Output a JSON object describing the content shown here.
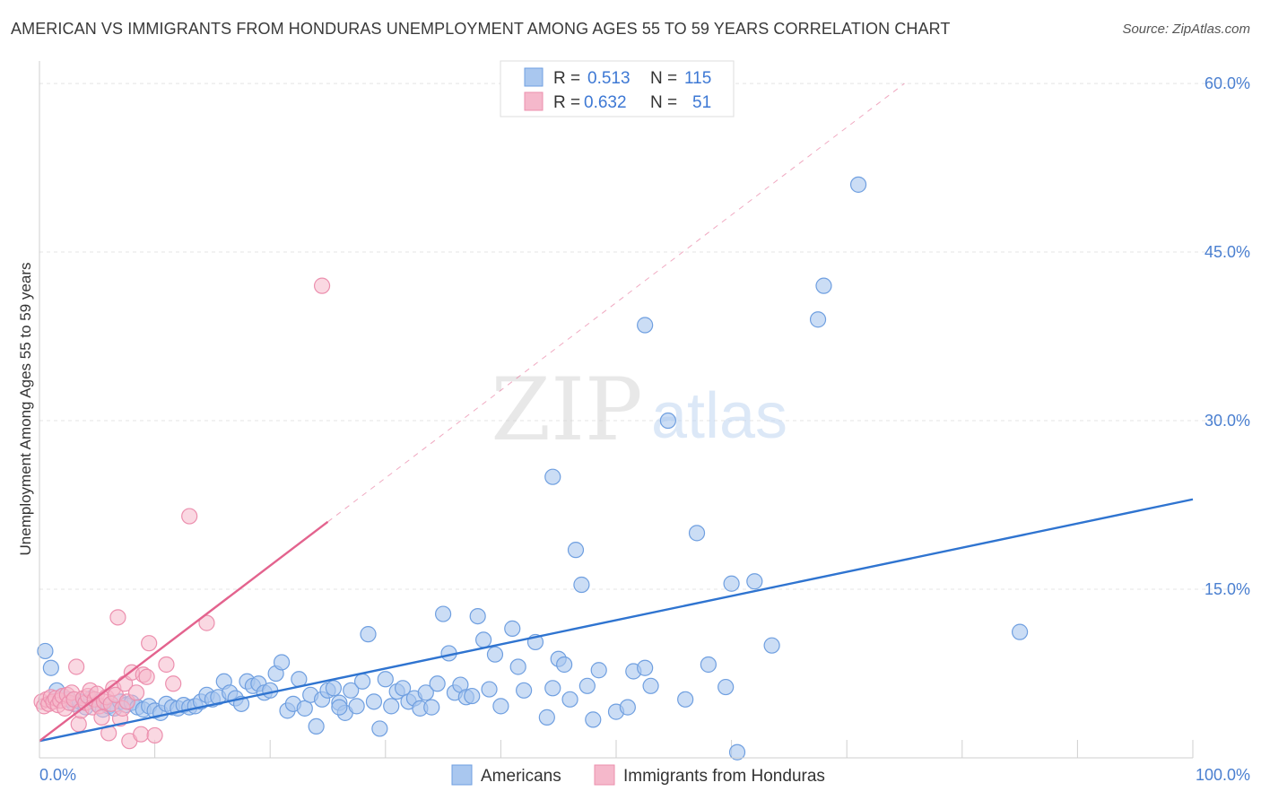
{
  "title": "AMERICAN VS IMMIGRANTS FROM HONDURAS UNEMPLOYMENT AMONG AGES 55 TO 59 YEARS CORRELATION CHART",
  "source": "Source: ZipAtlas.com",
  "watermark": {
    "zip": "ZIP",
    "atlas": "atlas"
  },
  "legend_top": [
    {
      "r_label": "R =",
      "r_value": "0.513",
      "n_label": "N =",
      "n_value": "115"
    },
    {
      "r_label": "R =",
      "r_value": "0.632",
      "n_label": "N =",
      "n_value": "51"
    }
  ],
  "colors": {
    "blue_fill": "#a9c7ef",
    "blue_stroke": "#6f9fe0",
    "blue_line": "#2f74d0",
    "pink_fill": "#f5b8cb",
    "pink_stroke": "#ec8fae",
    "pink_line": "#e3638e",
    "tick": "#4a7fd0",
    "grid": "#e4e4e4"
  },
  "chart_data": {
    "type": "scatter",
    "title": "AMERICAN VS IMMIGRANTS FROM HONDURAS UNEMPLOYMENT AMONG AGES 55 TO 59 YEARS CORRELATION CHART",
    "ylabel": "Unemployment Among Ages 55 to 59 years",
    "xlabel": "",
    "xlim": [
      0,
      100
    ],
    "ylim": [
      0,
      62
    ],
    "x_tick_labels": [
      "0.0%",
      "100.0%"
    ],
    "y_ticks": [
      15,
      30,
      45,
      60
    ],
    "y_tick_labels": [
      "15.0%",
      "30.0%",
      "45.0%",
      "60.0%"
    ],
    "grid": true,
    "legend_position": "bottom-center",
    "series": [
      {
        "name": "Americans",
        "r": 0.513,
        "n": 115,
        "trend": {
          "x": [
            0,
            100
          ],
          "y": [
            1.5,
            23.0
          ],
          "dashed_extension": false
        },
        "points": [
          [
            0.5,
            9.5
          ],
          [
            1,
            8
          ],
          [
            1.5,
            6
          ],
          [
            2,
            5.5
          ],
          [
            2.5,
            5.2
          ],
          [
            3,
            4.8
          ],
          [
            3.5,
            5
          ],
          [
            4,
            4.5
          ],
          [
            4.5,
            5.3
          ],
          [
            5,
            4.8
          ],
          [
            5.5,
            4.3
          ],
          [
            6,
            4.6
          ],
          [
            6.5,
            4.4
          ],
          [
            7,
            5
          ],
          [
            7.5,
            4.7
          ],
          [
            8,
            4.9
          ],
          [
            8.5,
            4.5
          ],
          [
            9,
            4.3
          ],
          [
            9.5,
            4.6
          ],
          [
            10,
            4.2
          ],
          [
            10.5,
            4
          ],
          [
            11,
            4.8
          ],
          [
            11.5,
            4.5
          ],
          [
            12,
            4.4
          ],
          [
            12.5,
            4.7
          ],
          [
            13,
            4.5
          ],
          [
            13.5,
            4.6
          ],
          [
            14,
            5
          ],
          [
            14.5,
            5.6
          ],
          [
            15,
            5.2
          ],
          [
            15.5,
            5.4
          ],
          [
            16,
            6.8
          ],
          [
            16.5,
            5.8
          ],
          [
            17,
            5.3
          ],
          [
            17.5,
            4.8
          ],
          [
            18,
            6.8
          ],
          [
            18.5,
            6.4
          ],
          [
            19,
            6.6
          ],
          [
            19.5,
            5.8
          ],
          [
            20,
            6
          ],
          [
            20.5,
            7.5
          ],
          [
            21,
            8.5
          ],
          [
            21.5,
            4.2
          ],
          [
            22,
            4.8
          ],
          [
            22.5,
            7
          ],
          [
            23,
            4.4
          ],
          [
            23.5,
            5.6
          ],
          [
            24,
            2.8
          ],
          [
            24.5,
            5.2
          ],
          [
            25,
            6
          ],
          [
            25.5,
            6.2
          ],
          [
            26,
            4.9
          ],
          [
            26.5,
            4
          ],
          [
            27,
            6
          ],
          [
            27.5,
            4.6
          ],
          [
            28,
            6.8
          ],
          [
            28.5,
            11
          ],
          [
            29,
            5
          ],
          [
            29.5,
            2.6
          ],
          [
            30,
            7
          ],
          [
            30.5,
            4.6
          ],
          [
            31,
            5.9
          ],
          [
            31.5,
            6.2
          ],
          [
            32,
            5
          ],
          [
            32.5,
            5.3
          ],
          [
            33,
            4.4
          ],
          [
            33.5,
            5.8
          ],
          [
            34,
            4.5
          ],
          [
            34.5,
            6.6
          ],
          [
            35,
            12.8
          ],
          [
            35.5,
            9.3
          ],
          [
            36,
            5.8
          ],
          [
            36.5,
            6.5
          ],
          [
            37,
            5.4
          ],
          [
            37.5,
            5.5
          ],
          [
            38,
            12.6
          ],
          [
            38.5,
            10.5
          ],
          [
            39,
            6.1
          ],
          [
            39.5,
            9.2
          ],
          [
            40,
            4.6
          ],
          [
            41,
            11.5
          ],
          [
            41.5,
            8.1
          ],
          [
            42,
            6
          ],
          [
            43,
            10.3
          ],
          [
            44,
            3.6
          ],
          [
            44.5,
            6.2
          ],
          [
            45,
            8.8
          ],
          [
            45.5,
            8.3
          ],
          [
            46,
            5.2
          ],
          [
            46.5,
            18.5
          ],
          [
            47,
            15.4
          ],
          [
            47.5,
            6.4
          ],
          [
            48,
            3.4
          ],
          [
            48.5,
            7.8
          ],
          [
            50,
            4.1
          ],
          [
            51,
            4.5
          ],
          [
            51.5,
            7.7
          ],
          [
            52.5,
            8
          ],
          [
            53,
            6.4
          ],
          [
            52.5,
            38.5
          ],
          [
            54.5,
            30
          ],
          [
            56,
            5.2
          ],
          [
            57,
            20
          ],
          [
            58,
            8.3
          ],
          [
            59.5,
            6.3
          ],
          [
            60,
            15.5
          ],
          [
            60.5,
            0.5
          ],
          [
            62,
            15.7
          ],
          [
            63.5,
            10
          ],
          [
            67.5,
            39
          ],
          [
            68,
            42
          ],
          [
            71,
            51
          ],
          [
            85,
            11.2
          ],
          [
            44.5,
            25
          ],
          [
            26,
            4.5
          ]
        ]
      },
      {
        "name": "Immigrants from Honduras",
        "r": 0.632,
        "n": 51,
        "trend": {
          "x": [
            0,
            25
          ],
          "y": [
            1.5,
            21.0
          ],
          "dashed_extension": true,
          "dashed_to": [
            75,
            60
          ]
        },
        "points": [
          [
            0.2,
            5
          ],
          [
            0.4,
            4.6
          ],
          [
            0.6,
            5.2
          ],
          [
            0.8,
            4.8
          ],
          [
            1,
            5.4
          ],
          [
            1.2,
            5
          ],
          [
            1.4,
            5.3
          ],
          [
            1.6,
            4.7
          ],
          [
            1.8,
            5.1
          ],
          [
            2,
            5.5
          ],
          [
            2.2,
            4.4
          ],
          [
            2.4,
            5.6
          ],
          [
            2.6,
            4.9
          ],
          [
            2.8,
            5.8
          ],
          [
            3,
            5.2
          ],
          [
            3.2,
            8.1
          ],
          [
            3.4,
            3
          ],
          [
            3.6,
            4.2
          ],
          [
            3.8,
            5.3
          ],
          [
            4,
            4.9
          ],
          [
            4.2,
            5.5
          ],
          [
            4.4,
            6
          ],
          [
            4.6,
            4.5
          ],
          [
            4.8,
            5.2
          ],
          [
            5,
            5.7
          ],
          [
            5.2,
            4.6
          ],
          [
            5.4,
            3.6
          ],
          [
            5.6,
            5
          ],
          [
            5.8,
            5.4
          ],
          [
            6,
            2.2
          ],
          [
            6.2,
            4.8
          ],
          [
            6.4,
            6.2
          ],
          [
            6.6,
            5.6
          ],
          [
            6.8,
            12.5
          ],
          [
            7,
            3.5
          ],
          [
            7.2,
            4.4
          ],
          [
            7.4,
            6.6
          ],
          [
            7.6,
            5
          ],
          [
            7.8,
            1.5
          ],
          [
            8,
            7.6
          ],
          [
            8.4,
            5.8
          ],
          [
            8.8,
            2.1
          ],
          [
            9,
            7.4
          ],
          [
            9.3,
            7.2
          ],
          [
            9.5,
            10.2
          ],
          [
            10,
            2.0
          ],
          [
            11,
            8.3
          ],
          [
            11.6,
            6.6
          ],
          [
            13,
            21.5
          ],
          [
            14.5,
            12
          ],
          [
            24.5,
            42
          ]
        ]
      }
    ]
  }
}
